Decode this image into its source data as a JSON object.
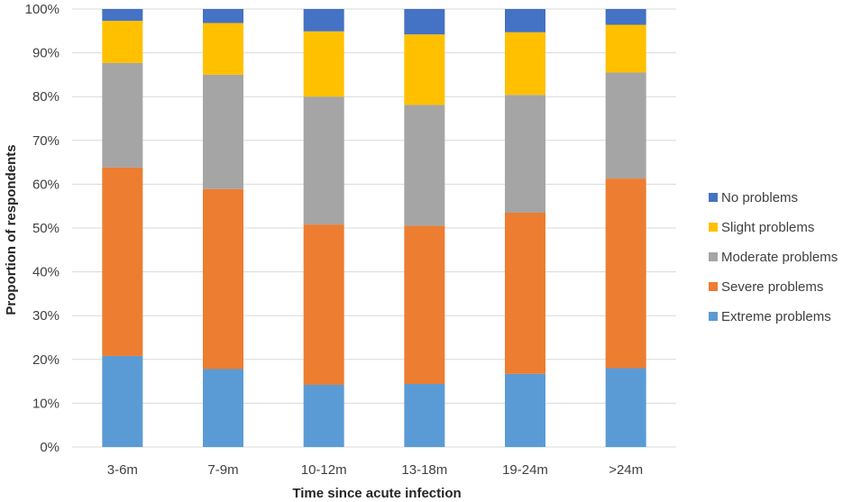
{
  "chart_data": {
    "type": "bar",
    "stacked": true,
    "percent_stacked": true,
    "categories": [
      "3-6m",
      "7-9m",
      "10-12m",
      "13-18m",
      "19-24m",
      ">24m"
    ],
    "series": [
      {
        "name": "Extreme problems",
        "color": "#5b9bd5",
        "values": [
          20.8,
          17.8,
          14.2,
          14.4,
          16.7,
          18.0
        ]
      },
      {
        "name": "Severe problems",
        "color": "#ed7d31",
        "values": [
          43.0,
          41.1,
          36.6,
          36.1,
          36.8,
          43.3
        ]
      },
      {
        "name": "Moderate problems",
        "color": "#a5a5a5",
        "values": [
          23.9,
          26.1,
          29.2,
          27.6,
          26.9,
          24.2
        ]
      },
      {
        "name": "Slight problems",
        "color": "#ffc000",
        "values": [
          9.6,
          11.8,
          14.9,
          16.1,
          14.3,
          10.9
        ]
      },
      {
        "name": "No problems",
        "color": "#4472c4",
        "values": [
          2.7,
          3.2,
          5.1,
          5.8,
          5.3,
          3.6
        ]
      }
    ],
    "legend_order": [
      "No problems",
      "Slight problems",
      "Moderate problems",
      "Severe problems",
      "Extreme problems"
    ],
    "y_ticks": [
      "0%",
      "10%",
      "20%",
      "30%",
      "40%",
      "50%",
      "60%",
      "70%",
      "80%",
      "90%",
      "100%"
    ],
    "ylim": [
      0,
      100
    ],
    "xlabel": "Time since acute infection",
    "ylabel": "Proportion of respondents",
    "grid": true,
    "legend_position": "right"
  }
}
